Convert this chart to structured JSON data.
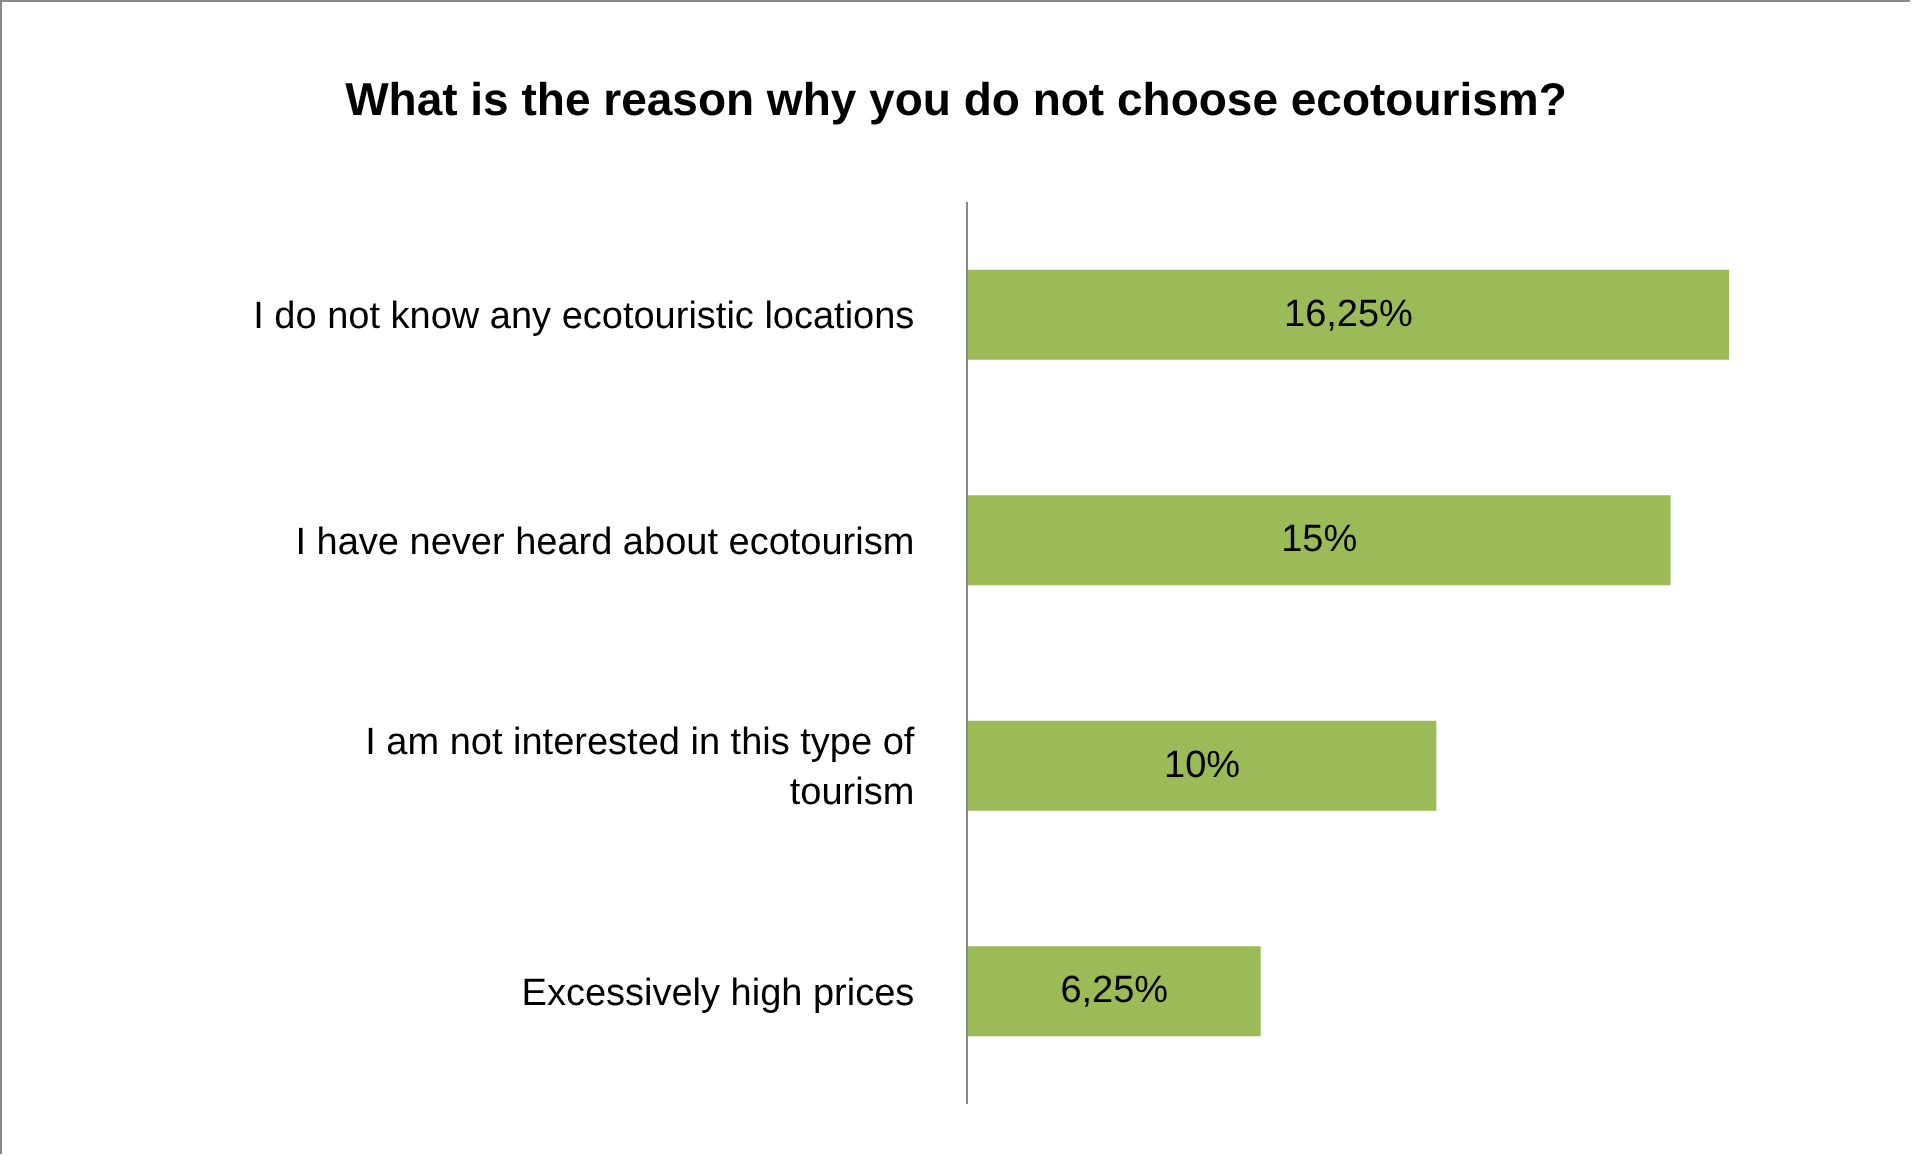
{
  "chart_data": {
    "type": "bar",
    "orientation": "horizontal",
    "title": "What is the reason why you do not choose ecotourism?",
    "categories": [
      "I do not know any ecotouristic locations",
      "I have never heard about ecotourism",
      "I am not interested in this type of tourism",
      "Excessively high prices"
    ],
    "values": [
      16.25,
      15,
      10,
      6.25
    ],
    "value_labels": [
      "16,25%",
      "15%",
      "10%",
      "6,25%"
    ],
    "color": "#9bbb59",
    "tick_labels": "y"
  }
}
